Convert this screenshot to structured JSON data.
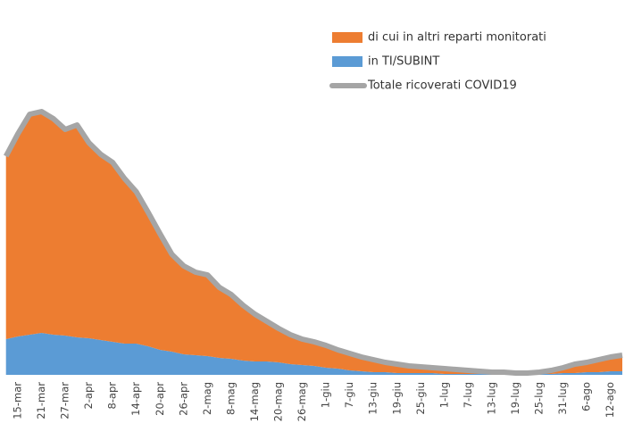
{
  "chart_data": {
    "type": "stacked-area",
    "categories": [
      null,
      "15-mar",
      null,
      "21-mar",
      null,
      "27-mar",
      null,
      "2-apr",
      null,
      "8-apr",
      null,
      "14-apr",
      null,
      "20-apr",
      null,
      "26-apr",
      null,
      "2-mag",
      null,
      "8-mag",
      null,
      "14-mag",
      null,
      "20-mag",
      null,
      "26-mag",
      null,
      "1-giu",
      null,
      "7-giu",
      null,
      "13-giu",
      null,
      "19-giu",
      null,
      "25-giu",
      null,
      "1-lug",
      null,
      "7-lug",
      null,
      "13-lug",
      null,
      "19-lug",
      null,
      "25-lug",
      null,
      "31-lug",
      null,
      "6-ago",
      null,
      "12-ago",
      null
    ],
    "series": [
      {
        "name": "di cui in altri reparti monitorati",
        "kind": "area",
        "color": "#ed7d31",
        "values": [
          205,
          227,
          247,
          248,
          242,
          231,
          238,
          219,
          208,
          201,
          185,
          170,
          150,
          130,
          109,
          99,
          93,
          91,
          79,
          72,
          62,
          53,
          45,
          38,
          33,
          29,
          27,
          25,
          21,
          19,
          16,
          14,
          11,
          10,
          8,
          7,
          6,
          6,
          5,
          4,
          3,
          2,
          2,
          1,
          1,
          2,
          4,
          6,
          10,
          11,
          14,
          16,
          18
        ]
      },
      {
        "name": "in TI/SUBINT",
        "kind": "area",
        "color": "#5b9bd5",
        "values": [
          40,
          43,
          45,
          47,
          45,
          44,
          42,
          41,
          39,
          37,
          35,
          35,
          32,
          28,
          26,
          23,
          22,
          21,
          19,
          18,
          16,
          15,
          15,
          14,
          12,
          11,
          10,
          8,
          7,
          5,
          4,
          3,
          3,
          2,
          2,
          2,
          2,
          1,
          1,
          1,
          1,
          1,
          1,
          1,
          1,
          1,
          1,
          2,
          2,
          3,
          3,
          4,
          4
        ]
      },
      {
        "name": "Totale ricoverati COVID19",
        "kind": "line",
        "color": "#a5a5a5",
        "values": [
          245,
          270,
          292,
          295,
          287,
          275,
          280,
          260,
          247,
          238,
          220,
          205,
          182,
          158,
          135,
          122,
          115,
          112,
          98,
          90,
          78,
          68,
          60,
          52,
          45,
          40,
          37,
          33,
          28,
          24,
          20,
          17,
          14,
          12,
          10,
          9,
          8,
          7,
          6,
          5,
          4,
          3,
          3,
          2,
          2,
          3,
          5,
          8,
          12,
          14,
          17,
          20,
          22
        ]
      }
    ],
    "ylim": [
      0,
      300
    ]
  }
}
